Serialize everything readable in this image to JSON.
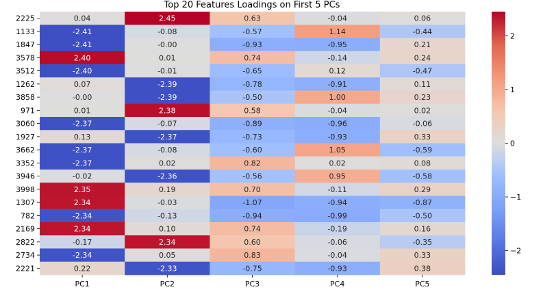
{
  "chart_data": {
    "type": "heatmap",
    "title": "Top 20 Features Loadings on First 5 PCs",
    "xlabel": "",
    "ylabel": "",
    "columns": [
      "PC1",
      "PC2",
      "PC3",
      "PC4",
      "PC5"
    ],
    "rows": [
      "2225",
      "1133",
      "1847",
      "3578",
      "3512",
      "1262",
      "3858",
      "971",
      "3060",
      "1927",
      "3662",
      "3352",
      "3946",
      "3998",
      "1307",
      "782",
      "2169",
      "2822",
      "2734",
      "2221"
    ],
    "values": [
      [
        "0.04",
        "2.45",
        "0.63",
        "-0.04",
        "0.06"
      ],
      [
        "-2.41",
        "-0.08",
        "-0.57",
        "1.14",
        "-0.44"
      ],
      [
        "-2.41",
        "-0.00",
        "-0.93",
        "-0.95",
        "0.21"
      ],
      [
        "2.40",
        "0.01",
        "0.74",
        "-0.14",
        "0.24"
      ],
      [
        "-2.40",
        "-0.01",
        "-0.65",
        "0.12",
        "-0.47"
      ],
      [
        "0.07",
        "-2.39",
        "-0.78",
        "-0.91",
        "0.11"
      ],
      [
        "-0.00",
        "-2.39",
        "-0.50",
        "1.00",
        "0.23"
      ],
      [
        "0.01",
        "2.38",
        "0.58",
        "-0.04",
        "0.02"
      ],
      [
        "-2.37",
        "-0.07",
        "-0.89",
        "-0.96",
        "-0.06"
      ],
      [
        "0.13",
        "-2.37",
        "-0.73",
        "-0.93",
        "0.33"
      ],
      [
        "-2.37",
        "-0.08",
        "-0.60",
        "1.05",
        "-0.59"
      ],
      [
        "-2.37",
        "0.02",
        "0.82",
        "0.02",
        "0.08"
      ],
      [
        "-0.02",
        "-2.36",
        "-0.56",
        "0.95",
        "-0.58"
      ],
      [
        "2.35",
        "0.19",
        "0.70",
        "-0.11",
        "0.29"
      ],
      [
        "2.34",
        "-0.03",
        "-1.07",
        "-0.94",
        "-0.87"
      ],
      [
        "-2.34",
        "-0.13",
        "-0.94",
        "-0.99",
        "-0.50"
      ],
      [
        "2.34",
        "0.10",
        "0.74",
        "-0.19",
        "0.16"
      ],
      [
        "-0.17",
        "2.34",
        "0.60",
        "-0.06",
        "-0.35"
      ],
      [
        "-2.34",
        "0.05",
        "0.83",
        "-0.04",
        "0.33"
      ],
      [
        "0.22",
        "-2.33",
        "-0.75",
        "-0.93",
        "0.38"
      ]
    ],
    "colormap": "coolwarm",
    "colors": {
      "low": "#3b4cc0",
      "mid": "#dddddd",
      "high": "#b40426"
    },
    "vmin": -2.45,
    "vmax": 2.45,
    "colorbar_ticks": [
      "−2",
      "−1",
      "0",
      "1",
      "2"
    ],
    "colorbar_tick_values": [
      -2,
      -1,
      0,
      1,
      2
    ],
    "grid": false,
    "annotations": true
  }
}
